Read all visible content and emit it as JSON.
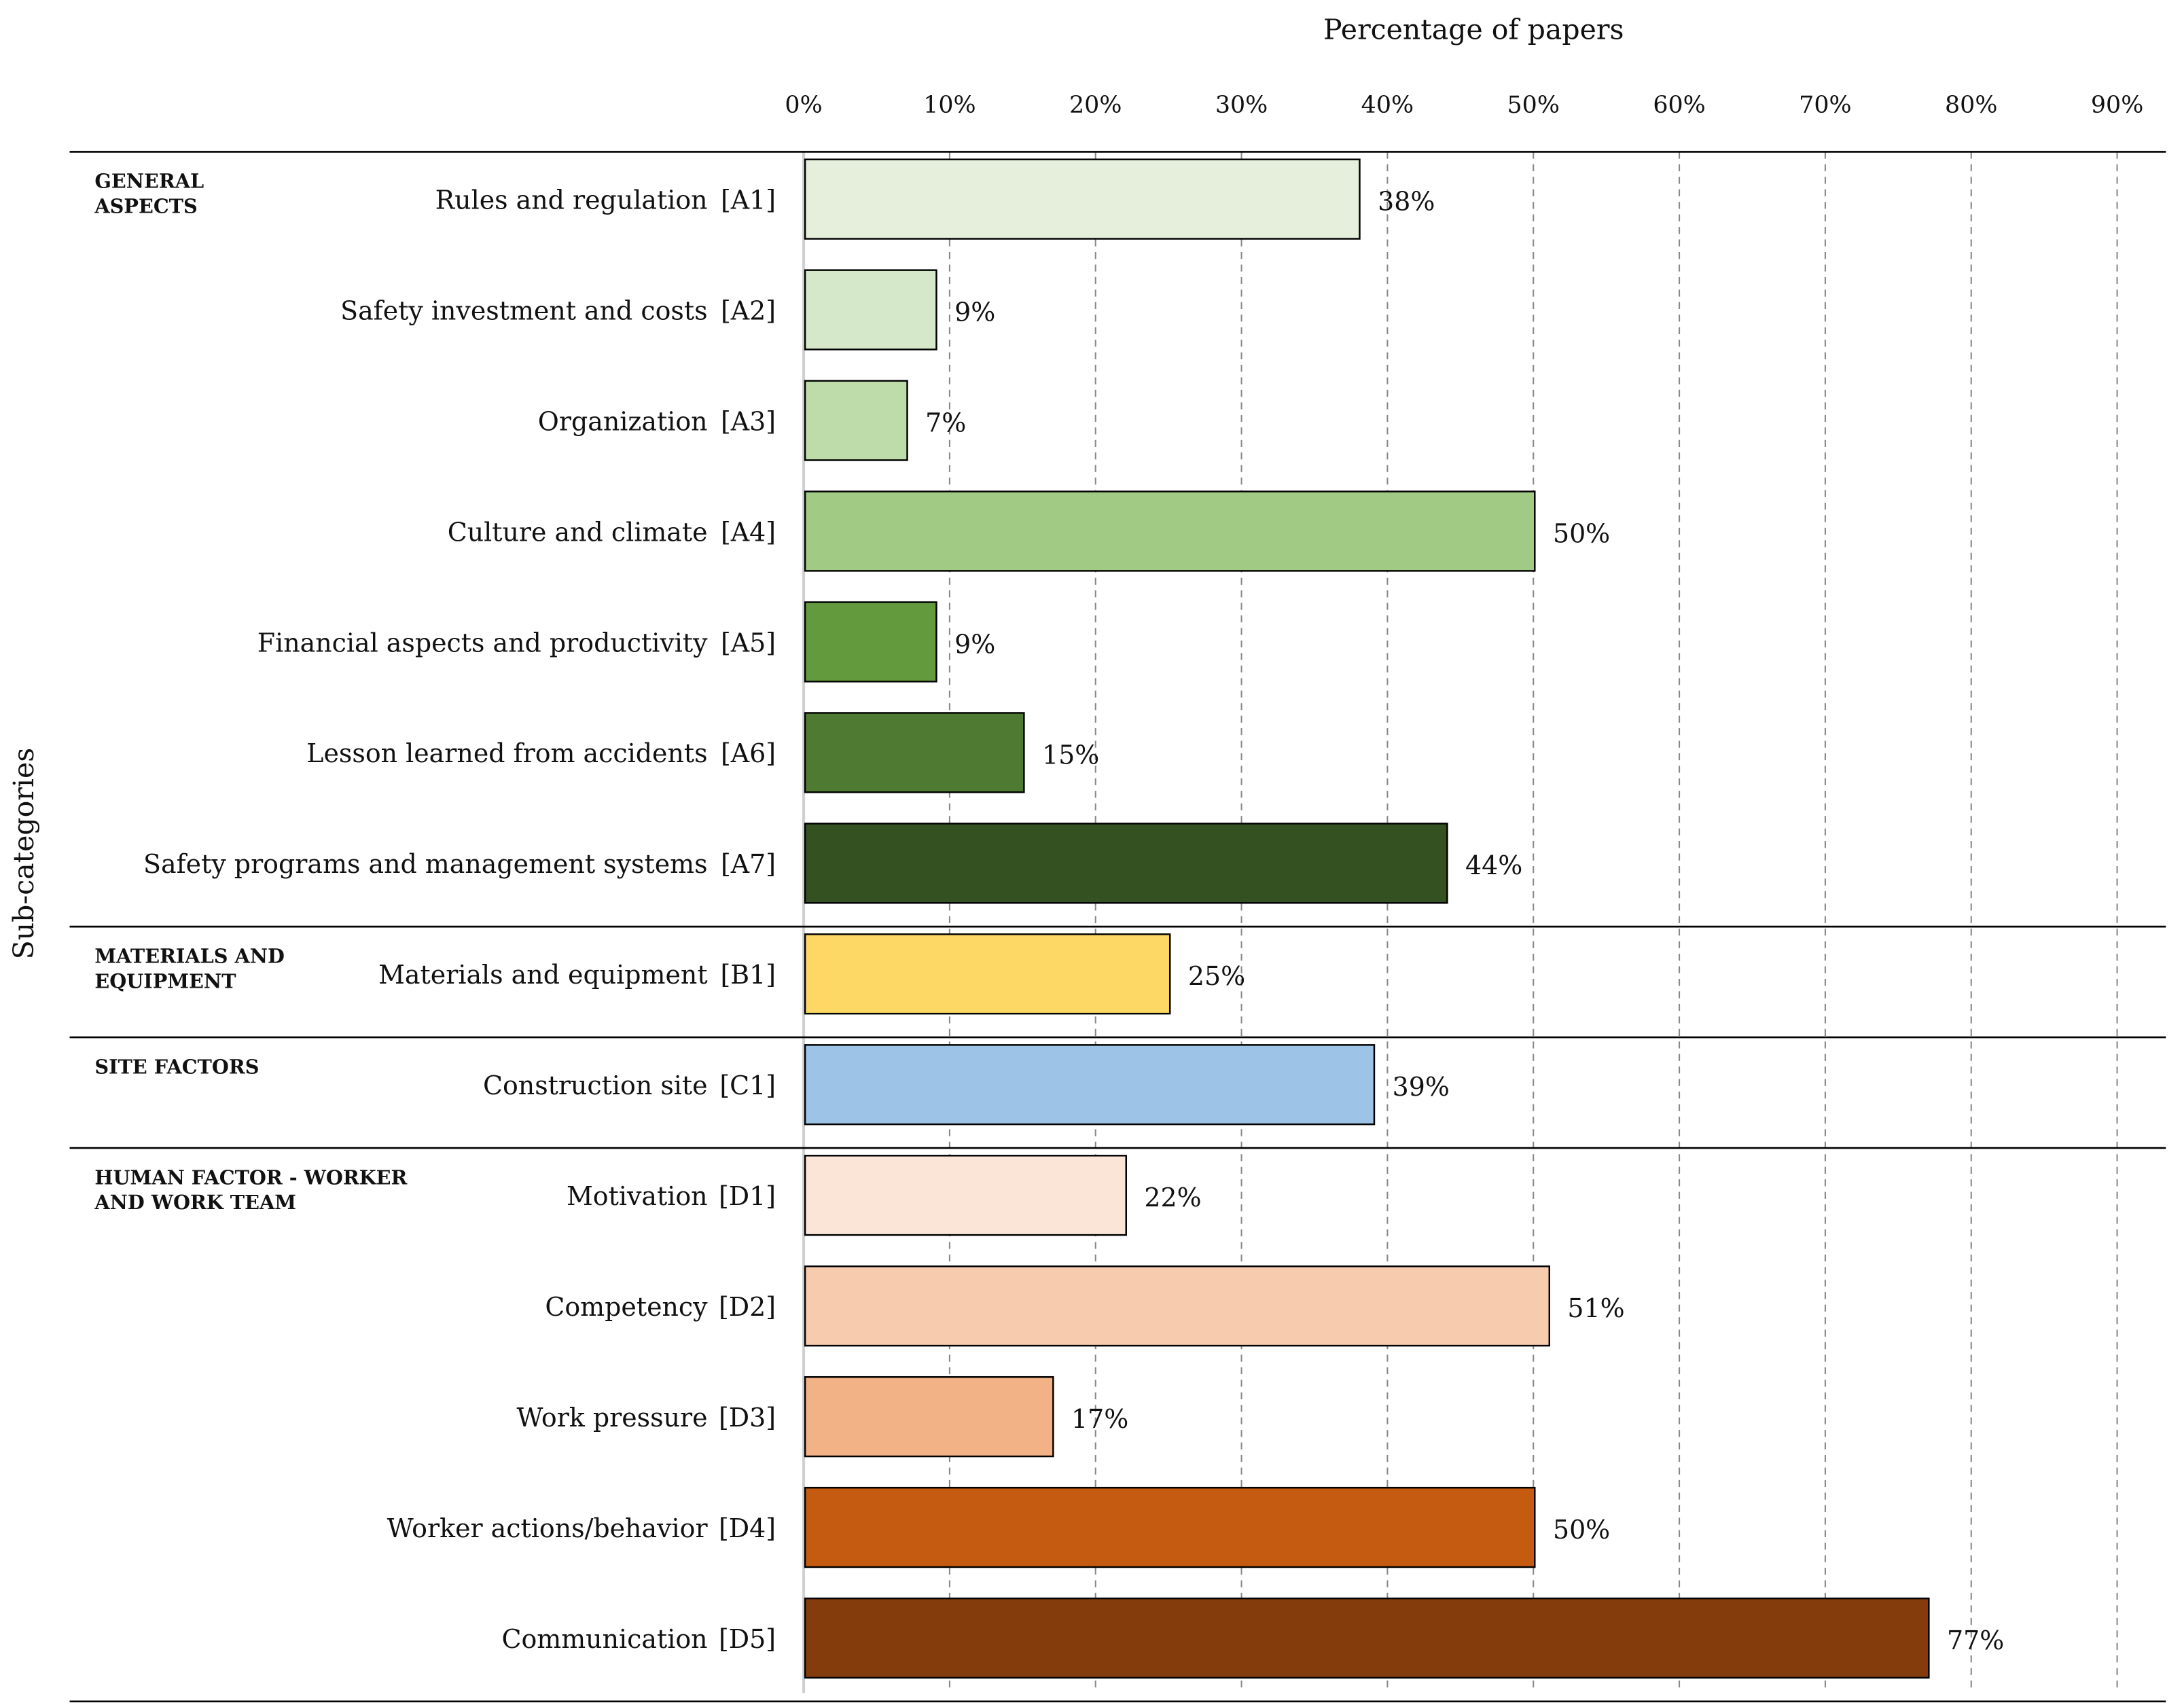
{
  "chart_data": {
    "type": "bar",
    "orientation": "horizontal",
    "title": "Percentage of papers",
    "xlabel": "Percentage of papers",
    "ylabel": "Sub-categories",
    "xlim": [
      0,
      90
    ],
    "x_ticks": [
      "0%",
      "10%",
      "20%",
      "30%",
      "40%",
      "50%",
      "60%",
      "70%",
      "80%",
      "90%"
    ],
    "grid": "vertical dashed",
    "groups": [
      {
        "name": "GENERAL ASPECTS",
        "lines": [
          "GENERAL",
          "ASPECTS"
        ],
        "items": [
          {
            "label": "Rules and regulation",
            "code": "[A1]",
            "value": 38,
            "value_label": "38%",
            "color": "#e5efdc"
          },
          {
            "label": "Safety investment and costs",
            "code": "[A2]",
            "value": 9,
            "value_label": "9%",
            "color": "#d5e8c9"
          },
          {
            "label": "Organization",
            "code": "[A3]",
            "value": 7,
            "value_label": "7%",
            "color": "#bedcaa"
          },
          {
            "label": "Culture and climate",
            "code": "[A4]",
            "value": 50,
            "value_label": "50%",
            "color": "#a1cb85"
          },
          {
            "label": "Financial aspects and productivity",
            "code": "[A5]",
            "value": 9,
            "value_label": "9%",
            "color": "#639a3d"
          },
          {
            "label": "Lesson learned from accidents",
            "code": "[A6]",
            "value": 15,
            "value_label": "15%",
            "color": "#4f7a32"
          },
          {
            "label": "Safety programs and management systems",
            "code": "[A7]",
            "value": 44,
            "value_label": "44%",
            "color": "#345221"
          }
        ]
      },
      {
        "name": "MATERIALS AND EQUIPMENT",
        "lines": [
          "MATERIALS AND",
          "EQUIPMENT"
        ],
        "items": [
          {
            "label": "Materials and equipment",
            "code": "[B1]",
            "value": 25,
            "value_label": "25%",
            "color": "#fdd865"
          }
        ]
      },
      {
        "name": "SITE FACTORS",
        "lines": [
          "SITE FACTORS"
        ],
        "items": [
          {
            "label": "Construction site",
            "code": "[C1]",
            "value": 39,
            "value_label": "39%",
            "color": "#9dc3e6"
          }
        ]
      },
      {
        "name": "HUMAN FACTOR - WORKER AND WORK TEAM",
        "lines": [
          "HUMAN FACTOR - WORKER",
          "AND WORK TEAM"
        ],
        "items": [
          {
            "label": "Motivation",
            "code": "[D1]",
            "value": 22,
            "value_label": "22%",
            "color": "#fae5d6"
          },
          {
            "label": "Competency",
            "code": "[D2]",
            "value": 51,
            "value_label": "51%",
            "color": "#f7cbad"
          },
          {
            "label": "Work pressure",
            "code": "[D3]",
            "value": 17,
            "value_label": "17%",
            "color": "#f3b186"
          },
          {
            "label": "Worker actions/behavior",
            "code": "[D4]",
            "value": 50,
            "value_label": "50%",
            "color": "#c55a11"
          },
          {
            "label": "Communication",
            "code": "[D5]",
            "value": 77,
            "value_label": "77%",
            "color": "#843c0c"
          }
        ]
      }
    ]
  }
}
